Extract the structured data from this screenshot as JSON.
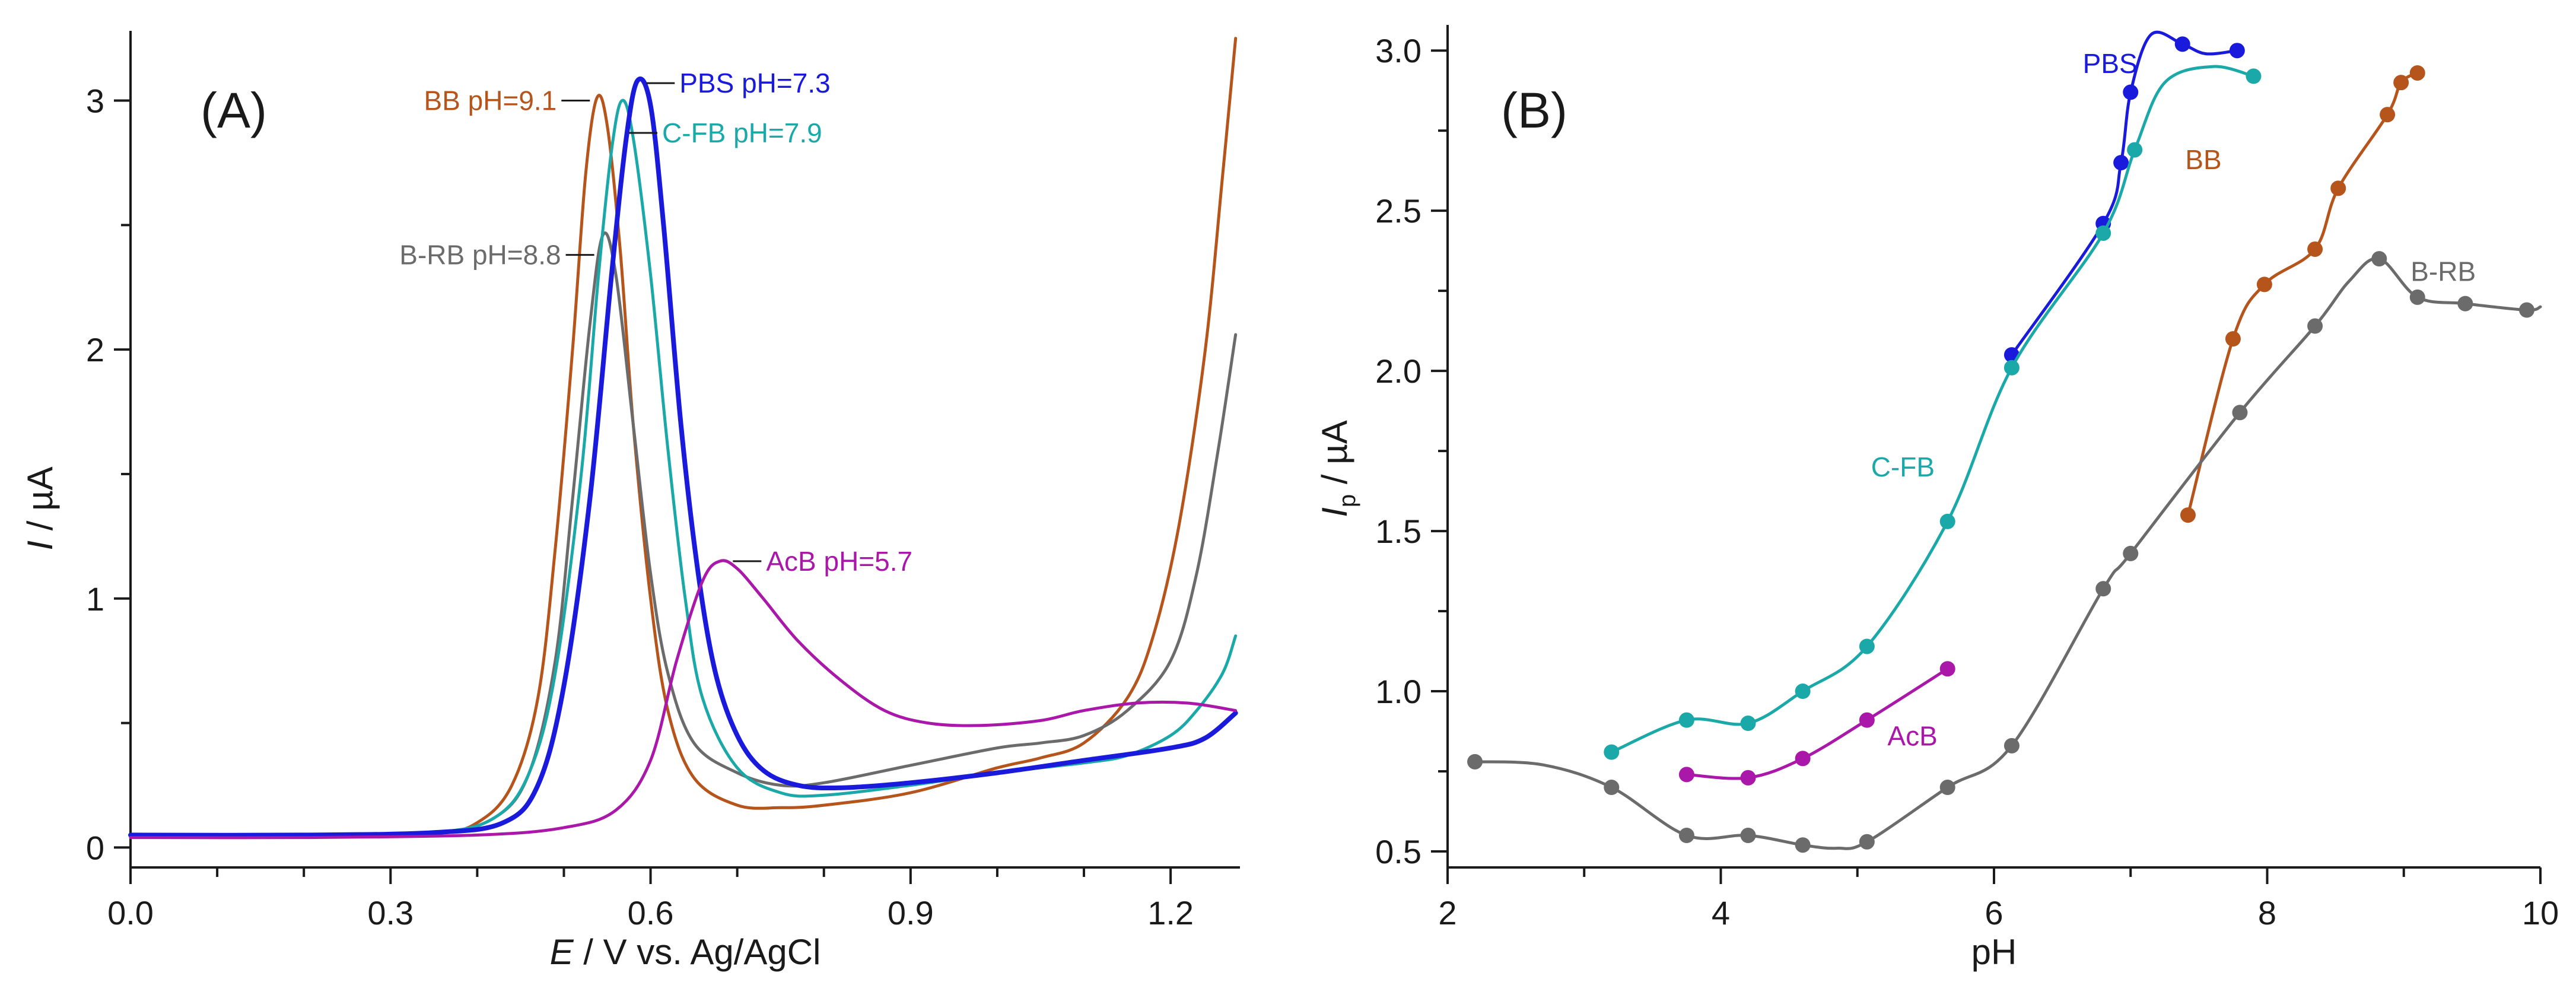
{
  "chart_data": [
    {
      "panel": "(A)",
      "type": "line",
      "xlabel": {
        "italic": "E",
        "rest": " / V vs. Ag/AgCl"
      },
      "ylabel": {
        "italic": "I",
        "rest": " / µA"
      },
      "xlim": [
        0.0,
        1.28
      ],
      "ylim": [
        -0.08,
        3.28
      ],
      "xticks": [
        0.0,
        0.3,
        0.6,
        0.9,
        1.2
      ],
      "xtick_labels": [
        "0.0",
        "0.3",
        "0.6",
        "0.9",
        "1.2"
      ],
      "xminor_step": 0.1,
      "yticks": [
        0,
        1,
        2,
        3
      ],
      "ytick_labels": [
        "0",
        "1",
        "2",
        "3"
      ],
      "yminor_step": 0.5,
      "series": [
        {
          "name": "BB pH=9.1",
          "color": "#b5541b",
          "width": 5,
          "label_at": [
            0.53,
            3.0
          ],
          "label_side": "left",
          "points": [
            [
              0.0,
              0.05
            ],
            [
              0.2,
              0.05
            ],
            [
              0.35,
              0.06
            ],
            [
              0.4,
              0.1
            ],
            [
              0.44,
              0.25
            ],
            [
              0.47,
              0.6
            ],
            [
              0.49,
              1.2
            ],
            [
              0.51,
              2.0
            ],
            [
              0.525,
              2.7
            ],
            [
              0.538,
              3.01
            ],
            [
              0.55,
              2.9
            ],
            [
              0.565,
              2.4
            ],
            [
              0.58,
              1.7
            ],
            [
              0.6,
              1.0
            ],
            [
              0.62,
              0.55
            ],
            [
              0.65,
              0.28
            ],
            [
              0.7,
              0.17
            ],
            [
              0.75,
              0.16
            ],
            [
              0.8,
              0.17
            ],
            [
              0.9,
              0.22
            ],
            [
              1.0,
              0.32
            ],
            [
              1.05,
              0.36
            ],
            [
              1.1,
              0.42
            ],
            [
              1.15,
              0.6
            ],
            [
              1.18,
              0.85
            ],
            [
              1.21,
              1.3
            ],
            [
              1.24,
              2.0
            ],
            [
              1.26,
              2.7
            ],
            [
              1.275,
              3.25
            ]
          ]
        },
        {
          "name": "B-RB pH=8.8",
          "color": "#6b6b6b",
          "width": 5,
          "label_at": [
            0.535,
            2.38
          ],
          "label_side": "left",
          "points": [
            [
              0.0,
              0.05
            ],
            [
              0.2,
              0.05
            ],
            [
              0.35,
              0.06
            ],
            [
              0.42,
              0.12
            ],
            [
              0.46,
              0.3
            ],
            [
              0.49,
              0.75
            ],
            [
              0.51,
              1.4
            ],
            [
              0.53,
              2.1
            ],
            [
              0.545,
              2.46
            ],
            [
              0.56,
              2.3
            ],
            [
              0.58,
              1.7
            ],
            [
              0.6,
              1.1
            ],
            [
              0.62,
              0.7
            ],
            [
              0.65,
              0.42
            ],
            [
              0.7,
              0.3
            ],
            [
              0.75,
              0.25
            ],
            [
              0.8,
              0.26
            ],
            [
              0.9,
              0.33
            ],
            [
              1.0,
              0.4
            ],
            [
              1.05,
              0.42
            ],
            [
              1.1,
              0.45
            ],
            [
              1.15,
              0.55
            ],
            [
              1.2,
              0.75
            ],
            [
              1.23,
              1.1
            ],
            [
              1.255,
              1.6
            ],
            [
              1.275,
              2.06
            ]
          ]
        },
        {
          "name": "C-FB pH=7.9",
          "color": "#1ba8a8",
          "width": 5,
          "label_at": [
            0.575,
            2.87
          ],
          "label_side": "right",
          "points": [
            [
              0.0,
              0.05
            ],
            [
              0.2,
              0.05
            ],
            [
              0.35,
              0.06
            ],
            [
              0.42,
              0.12
            ],
            [
              0.46,
              0.3
            ],
            [
              0.49,
              0.7
            ],
            [
              0.52,
              1.5
            ],
            [
              0.54,
              2.3
            ],
            [
              0.555,
              2.8
            ],
            [
              0.567,
              3.0
            ],
            [
              0.58,
              2.85
            ],
            [
              0.6,
              2.3
            ],
            [
              0.62,
              1.6
            ],
            [
              0.64,
              1.0
            ],
            [
              0.66,
              0.6
            ],
            [
              0.7,
              0.32
            ],
            [
              0.75,
              0.22
            ],
            [
              0.8,
              0.21
            ],
            [
              0.9,
              0.25
            ],
            [
              1.0,
              0.3
            ],
            [
              1.1,
              0.34
            ],
            [
              1.15,
              0.37
            ],
            [
              1.2,
              0.45
            ],
            [
              1.23,
              0.55
            ],
            [
              1.26,
              0.7
            ],
            [
              1.275,
              0.85
            ]
          ]
        },
        {
          "name": "PBS pH=7.3",
          "color": "#1a1adc",
          "width": 8,
          "label_at": [
            0.595,
            3.07
          ],
          "label_side": "right",
          "points": [
            [
              0.0,
              0.05
            ],
            [
              0.2,
              0.05
            ],
            [
              0.35,
              0.06
            ],
            [
              0.43,
              0.1
            ],
            [
              0.47,
              0.25
            ],
            [
              0.5,
              0.65
            ],
            [
              0.53,
              1.4
            ],
            [
              0.555,
              2.3
            ],
            [
              0.572,
              2.85
            ],
            [
              0.585,
              3.08
            ],
            [
              0.6,
              2.98
            ],
            [
              0.615,
              2.5
            ],
            [
              0.635,
              1.7
            ],
            [
              0.655,
              1.1
            ],
            [
              0.675,
              0.7
            ],
            [
              0.7,
              0.45
            ],
            [
              0.73,
              0.31
            ],
            [
              0.77,
              0.25
            ],
            [
              0.82,
              0.24
            ],
            [
              0.9,
              0.26
            ],
            [
              1.0,
              0.3
            ],
            [
              1.1,
              0.35
            ],
            [
              1.2,
              0.4
            ],
            [
              1.24,
              0.44
            ],
            [
              1.275,
              0.54
            ]
          ]
        },
        {
          "name": "AcB pH=5.7",
          "color": "#aa18aa",
          "width": 5,
          "label_at": [
            0.695,
            1.15
          ],
          "label_side": "right",
          "points": [
            [
              0.0,
              0.04
            ],
            [
              0.2,
              0.04
            ],
            [
              0.4,
              0.05
            ],
            [
              0.5,
              0.08
            ],
            [
              0.56,
              0.15
            ],
            [
              0.6,
              0.35
            ],
            [
              0.63,
              0.75
            ],
            [
              0.66,
              1.07
            ],
            [
              0.68,
              1.15
            ],
            [
              0.7,
              1.12
            ],
            [
              0.73,
              1.0
            ],
            [
              0.77,
              0.83
            ],
            [
              0.82,
              0.67
            ],
            [
              0.87,
              0.55
            ],
            [
              0.92,
              0.5
            ],
            [
              0.98,
              0.49
            ],
            [
              1.05,
              0.51
            ],
            [
              1.1,
              0.55
            ],
            [
              1.16,
              0.58
            ],
            [
              1.22,
              0.58
            ],
            [
              1.275,
              0.55
            ]
          ]
        }
      ],
      "annotations": [
        {
          "text": "BB pH=9.1",
          "color": "#b5541b"
        },
        {
          "text": "B-RB pH=8.8",
          "color": "#6b6b6b"
        },
        {
          "text": "C-FB pH=7.9",
          "color": "#1ba8a8"
        },
        {
          "text": "PBS pH=7.3",
          "color": "#1a1adc"
        },
        {
          "text": "AcB pH=5.7",
          "color": "#aa18aa"
        }
      ]
    },
    {
      "panel": "(B)",
      "type": "line",
      "xlabel": {
        "italic": "",
        "rest": "pH"
      },
      "ylabel": {
        "italic": "I",
        "sub": "p",
        "rest": " / µA"
      },
      "xlim": [
        2,
        10
      ],
      "ylim": [
        0.45,
        3.08
      ],
      "xticks": [
        2,
        4,
        6,
        8,
        10
      ],
      "xtick_labels": [
        "2",
        "4",
        "6",
        "8",
        "10"
      ],
      "xminor_step": 1,
      "yticks": [
        0.5,
        1.0,
        1.5,
        2.0,
        2.5,
        3.0
      ],
      "ytick_labels": [
        "0.5",
        "1.0",
        "1.5",
        "2.0",
        "2.5",
        "3.0"
      ],
      "yminor_step": 0.25,
      "series": [
        {
          "name": "PBS",
          "color": "#1a1adc",
          "width": 5,
          "label_at": [
            6.65,
            2.96
          ],
          "points": [
            [
              6.13,
              2.05
            ],
            [
              6.8,
              2.46
            ],
            [
              6.93,
              2.65
            ],
            [
              7.0,
              2.87
            ],
            [
              7.38,
              3.02
            ],
            [
              7.78,
              3.0
            ]
          ],
          "curve": [
            [
              6.13,
              2.05
            ],
            [
              6.8,
              2.46
            ],
            [
              6.93,
              2.65
            ],
            [
              7.0,
              2.87
            ],
            [
              7.15,
              3.05
            ],
            [
              7.38,
              3.02
            ],
            [
              7.55,
              2.99
            ],
            [
              7.78,
              3.0
            ]
          ]
        },
        {
          "name": "C-FB",
          "color": "#1ba8a8",
          "width": 5,
          "label_at": [
            5.1,
            1.7
          ],
          "points": [
            [
              3.2,
              0.81
            ],
            [
              3.75,
              0.91
            ],
            [
              4.2,
              0.9
            ],
            [
              4.6,
              1.0
            ],
            [
              5.07,
              1.14
            ],
            [
              5.66,
              1.53
            ],
            [
              6.13,
              2.01
            ],
            [
              6.8,
              2.43
            ],
            [
              7.03,
              2.69
            ],
            [
              7.9,
              2.92
            ]
          ],
          "curve": [
            [
              3.2,
              0.81
            ],
            [
              3.75,
              0.91
            ],
            [
              4.2,
              0.9
            ],
            [
              4.6,
              1.0
            ],
            [
              5.07,
              1.14
            ],
            [
              5.66,
              1.53
            ],
            [
              6.13,
              2.01
            ],
            [
              6.8,
              2.43
            ],
            [
              7.03,
              2.69
            ],
            [
              7.25,
              2.9
            ],
            [
              7.6,
              2.95
            ],
            [
              7.9,
              2.92
            ]
          ]
        },
        {
          "name": "BB",
          "color": "#b5541b",
          "width": 5,
          "label_at": [
            7.4,
            2.66
          ],
          "points": [
            [
              7.42,
              1.55
            ],
            [
              7.75,
              2.1
            ],
            [
              7.98,
              2.27
            ],
            [
              8.35,
              2.38
            ],
            [
              8.52,
              2.57
            ],
            [
              8.88,
              2.8
            ],
            [
              8.98,
              2.9
            ],
            [
              9.1,
              2.93
            ]
          ],
          "curve": [
            [
              7.42,
              1.55
            ],
            [
              7.75,
              2.1
            ],
            [
              7.98,
              2.27
            ],
            [
              8.35,
              2.38
            ],
            [
              8.52,
              2.57
            ],
            [
              8.88,
              2.8
            ],
            [
              8.98,
              2.9
            ],
            [
              9.1,
              2.93
            ]
          ]
        },
        {
          "name": "B-RB",
          "color": "#6b6b6b",
          "width": 5,
          "label_at": [
            9.05,
            2.31
          ],
          "points": [
            [
              2.2,
              0.78
            ],
            [
              3.2,
              0.7
            ],
            [
              3.75,
              0.55
            ],
            [
              4.2,
              0.55
            ],
            [
              4.6,
              0.52
            ],
            [
              5.07,
              0.53
            ],
            [
              5.66,
              0.7
            ],
            [
              6.13,
              0.83
            ],
            [
              6.8,
              1.32
            ],
            [
              7.0,
              1.43
            ],
            [
              7.8,
              1.87
            ],
            [
              8.35,
              2.14
            ],
            [
              8.82,
              2.35
            ],
            [
              9.1,
              2.23
            ],
            [
              9.45,
              2.21
            ],
            [
              9.9,
              2.19
            ]
          ],
          "curve": [
            [
              2.2,
              0.78
            ],
            [
              2.7,
              0.77
            ],
            [
              3.2,
              0.7
            ],
            [
              3.75,
              0.55
            ],
            [
              4.2,
              0.55
            ],
            [
              4.6,
              0.52
            ],
            [
              4.85,
              0.51
            ],
            [
              5.07,
              0.53
            ],
            [
              5.66,
              0.7
            ],
            [
              6.13,
              0.83
            ],
            [
              6.8,
              1.32
            ],
            [
              7.0,
              1.43
            ],
            [
              7.8,
              1.87
            ],
            [
              8.35,
              2.14
            ],
            [
              8.6,
              2.28
            ],
            [
              8.82,
              2.35
            ],
            [
              9.1,
              2.23
            ],
            [
              9.45,
              2.21
            ],
            [
              9.9,
              2.19
            ],
            [
              10.0,
              2.2
            ]
          ]
        },
        {
          "name": "AcB",
          "color": "#aa18aa",
          "width": 5,
          "label_at": [
            5.22,
            0.86
          ],
          "points": [
            [
              3.75,
              0.74
            ],
            [
              4.2,
              0.73
            ],
            [
              4.6,
              0.79
            ],
            [
              5.07,
              0.91
            ],
            [
              5.66,
              1.07
            ]
          ],
          "curve": [
            [
              3.75,
              0.74
            ],
            [
              4.2,
              0.73
            ],
            [
              4.6,
              0.79
            ],
            [
              5.07,
              0.91
            ],
            [
              5.66,
              1.07
            ]
          ]
        }
      ]
    }
  ]
}
